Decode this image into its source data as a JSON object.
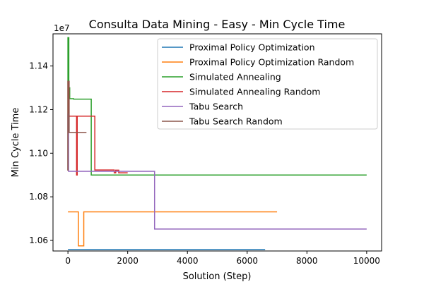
{
  "chart_data": {
    "type": "line",
    "title": "Consulta Data Mining - Easy - Min Cycle Time",
    "xlabel": "Solution (Step)",
    "ylabel": "Min Cycle Time",
    "y_offset_label": "1e7",
    "xlim": [
      -500,
      10500
    ],
    "ylim": [
      10.5515,
      11.5475
    ],
    "y_scale_note": "y values in units of 1e6 (axis shows ×1e7)",
    "x_ticks": [
      0,
      2000,
      4000,
      6000,
      8000,
      10000
    ],
    "x_tick_labels": [
      "0",
      "2000",
      "4000",
      "6000",
      "8000",
      "10000"
    ],
    "y_ticks": [
      10.6,
      10.8,
      11.0,
      11.2,
      11.4
    ],
    "y_tick_labels": [
      "1.06",
      "1.08",
      "1.10",
      "1.12",
      "1.14"
    ],
    "grid": false,
    "legend_position": "top-right",
    "series": [
      {
        "name": "Proximal Policy Optimization",
        "color": "#1f77b4",
        "x": [
          0,
          6600
        ],
        "y": [
          10.558,
          10.558
        ]
      },
      {
        "name": "Proximal Policy Optimization Random",
        "color": "#ff7f0e",
        "x": [
          0,
          350,
          350,
          530,
          530,
          7000
        ],
        "y": [
          10.731,
          10.731,
          10.575,
          10.575,
          10.731,
          10.731
        ]
      },
      {
        "name": "Simulated Annealing",
        "color": "#2ca02c",
        "x": [
          0,
          0,
          30,
          30,
          60,
          60,
          100,
          100,
          190,
          190,
          780,
          780,
          10000
        ],
        "y": [
          10.92,
          11.53,
          11.53,
          11.3,
          11.3,
          11.25,
          11.25,
          11.25,
          11.25,
          11.248,
          11.248,
          10.9,
          10.9
        ]
      },
      {
        "name": "Simulated Annealing Random",
        "color": "#d62728",
        "x": [
          0,
          0,
          30,
          30,
          90,
          90,
          290,
          290,
          310,
          310,
          330,
          330,
          900,
          900,
          1550,
          1550,
          1600,
          1600,
          1700,
          1700,
          2000
        ],
        "y": [
          10.92,
          11.33,
          11.33,
          11.17,
          11.17,
          11.17,
          11.17,
          10.9,
          10.9,
          11.17,
          11.17,
          11.17,
          11.17,
          10.923,
          10.923,
          10.91,
          10.91,
          10.922,
          10.922,
          10.91,
          10.91
        ]
      },
      {
        "name": "Tabu Search",
        "color": "#9467bd",
        "x": [
          0,
          0,
          20,
          20,
          2900,
          2900,
          10000
        ],
        "y": [
          10.92,
          11.18,
          11.18,
          10.917,
          10.917,
          10.652,
          10.652
        ]
      },
      {
        "name": "Tabu Search Random",
        "color": "#8c564b",
        "x": [
          0,
          0,
          40,
          40,
          620
        ],
        "y": [
          10.92,
          11.33,
          11.33,
          11.095,
          11.095
        ]
      }
    ]
  }
}
